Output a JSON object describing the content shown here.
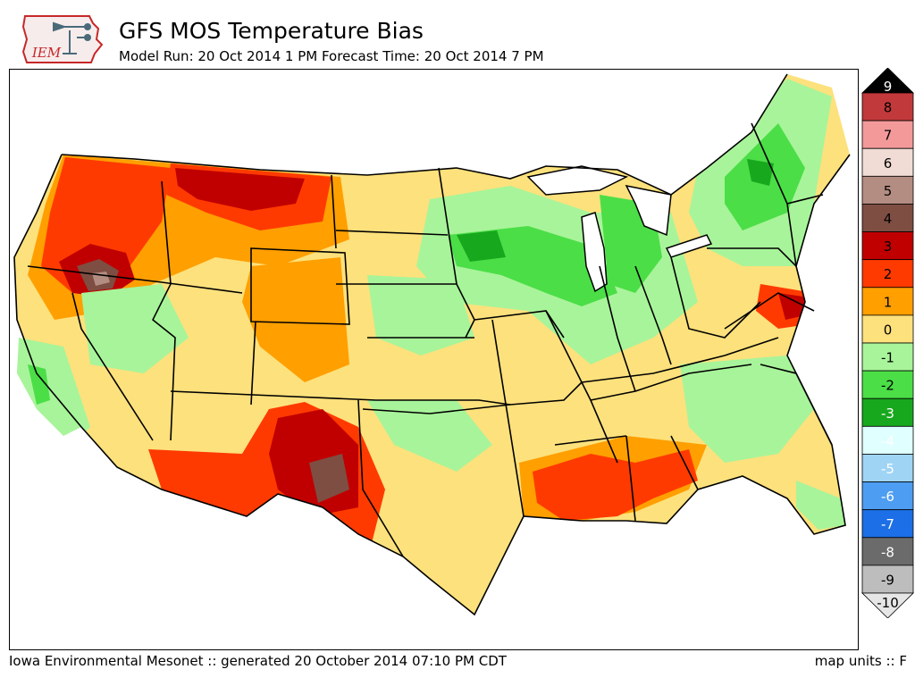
{
  "header": {
    "logo_text": "IEM",
    "title": "GFS MOS Temperature Bias",
    "subtitle": "Model Run: 20 Oct 2014 1 PM Forecast Time: 20 Oct 2014 7 PM"
  },
  "footer": {
    "credit": "Iowa Environmental Mesonet :: generated 20 October 2014 07:10 PM CDT",
    "units": "map units :: F"
  },
  "colors": {
    "land_neutral": "#fde17c",
    "water": "#ffffff",
    "border": "#000000"
  },
  "legend": {
    "levels": [
      {
        "label": "9",
        "color": "#000000"
      },
      {
        "label": "8",
        "color": "#c2393b"
      },
      {
        "label": "7",
        "color": "#f3999a"
      },
      {
        "label": "6",
        "color": "#f0dcd4"
      },
      {
        "label": "5",
        "color": "#b48d82"
      },
      {
        "label": "4",
        "color": "#7e4e43"
      },
      {
        "label": "3",
        "color": "#c00000"
      },
      {
        "label": "2",
        "color": "#ff3a00"
      },
      {
        "label": "1",
        "color": "#ff9f00"
      },
      {
        "label": "0",
        "color": "#fde17c"
      },
      {
        "label": "-1",
        "color": "#a8f49a"
      },
      {
        "label": "-2",
        "color": "#4bde47"
      },
      {
        "label": "-3",
        "color": "#18a81d"
      },
      {
        "label": "-4",
        "color": "#e0ffff"
      },
      {
        "label": "-5",
        "color": "#9fd4f5"
      },
      {
        "label": "-6",
        "color": "#4d9df2"
      },
      {
        "label": "-7",
        "color": "#1c6fe6"
      },
      {
        "label": "-8",
        "color": "#6b6b6b"
      },
      {
        "label": "-9",
        "color": "#bdbdbd"
      },
      {
        "label": "-10",
        "color": "#e6e6e6"
      }
    ]
  }
}
